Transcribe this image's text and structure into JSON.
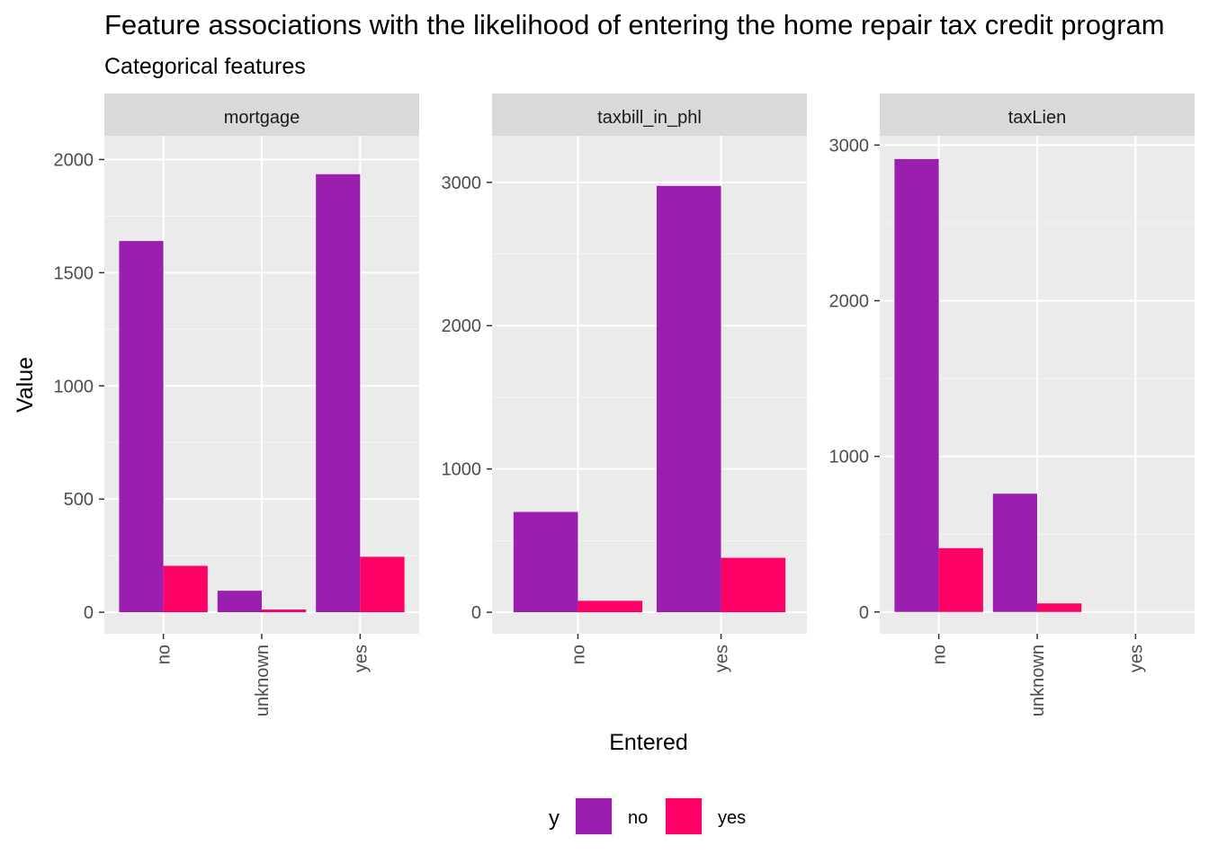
{
  "title": "Feature associations with the likelihood of entering the home repair tax credit program",
  "subtitle": "Categorical features",
  "chart_data": {
    "type": "bar",
    "xlabel": "Entered",
    "ylabel": "Value",
    "legend": {
      "title": "y",
      "position": "bottom",
      "entries": [
        "no",
        "yes"
      ]
    },
    "colors": {
      "no": "#9A1FAE",
      "yes": "#FF0066"
    },
    "grid": true,
    "panels": [
      {
        "name": "mortgage",
        "categories": [
          "no",
          "unknown",
          "yes"
        ],
        "ylim": [
          -95,
          2105
        ],
        "yticks": [
          0,
          500,
          1000,
          1500,
          2000
        ],
        "series": [
          {
            "name": "no",
            "values": [
              1640,
              95,
              1935
            ]
          },
          {
            "name": "yes",
            "values": [
              205,
              12,
              245
            ]
          }
        ]
      },
      {
        "name": "taxbill_in_phl",
        "categories": [
          "no",
          "yes"
        ],
        "ylim": [
          -150,
          3325
        ],
        "yticks": [
          0,
          1000,
          2000,
          3000
        ],
        "series": [
          {
            "name": "no",
            "values": [
              700,
              2975
            ]
          },
          {
            "name": "yes",
            "values": [
              80,
              380
            ]
          }
        ]
      },
      {
        "name": "taxLien",
        "categories": [
          "no",
          "unknown",
          "yes"
        ],
        "ylim": [
          -140,
          3060
        ],
        "yticks": [
          0,
          1000,
          2000,
          3000
        ],
        "series": [
          {
            "name": "no",
            "values": [
              2910,
              760,
              0
            ]
          },
          {
            "name": "yes",
            "values": [
              410,
              55,
              0
            ]
          }
        ]
      }
    ]
  }
}
